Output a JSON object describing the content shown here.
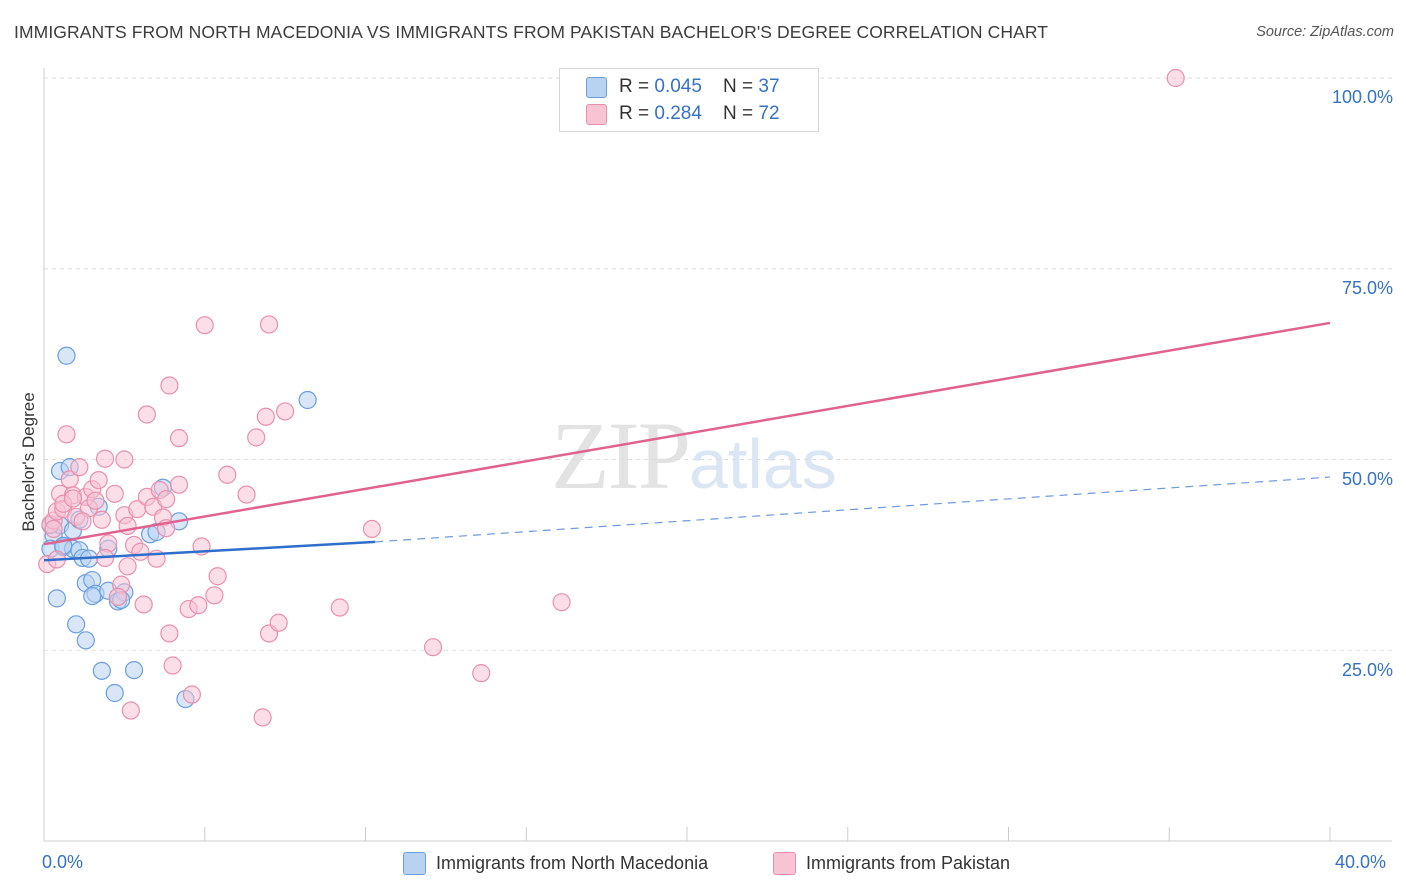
{
  "header": {
    "title": "IMMIGRANTS FROM NORTH MACEDONIA VS IMMIGRANTS FROM PAKISTAN BACHELOR'S DEGREE CORRELATION CHART",
    "source": "Source: ZipAtlas.com"
  },
  "watermark": {
    "zip": "ZIP",
    "atlas": "atlas"
  },
  "legend_top": {
    "rows": [
      {
        "r_label": "R = ",
        "r_value": "0.045",
        "n_label": "N = ",
        "n_value": "37"
      },
      {
        "r_label": "R = ",
        "r_value": "0.284",
        "n_label": "N = ",
        "n_value": "72"
      }
    ]
  },
  "colors": {
    "blue_fill": "#b8d2f2",
    "blue_stroke": "#6b9fdc",
    "blue_line": "#2f6fcb",
    "pink_fill": "#f8c3d3",
    "pink_stroke": "#ea8fae",
    "pink_line": "#e0628e",
    "accent_text": "#3572c4",
    "grid": "#dedede"
  },
  "chart_data": {
    "type": "scatter",
    "title": "IMMIGRANTS FROM NORTH MACEDONIA VS IMMIGRANTS FROM PAKISTAN BACHELOR'S DEGREE CORRELATION CHART",
    "xlabel": "",
    "ylabel": "Bachelor's Degree",
    "xlim": [
      0,
      40
    ],
    "ylim": [
      0,
      104
    ],
    "x_tick_labels": [
      "0.0%",
      "40.0%"
    ],
    "y_ticks": [
      25,
      50,
      75,
      100
    ],
    "y_tick_labels": [
      "25.0%",
      "50.0%",
      "75.0%",
      "100.0%"
    ],
    "legend": [
      "Immigrants from North Macedonia",
      "Immigrants from Pakistan"
    ],
    "series": [
      {
        "name": "Immigrants from North Macedonia",
        "R": 0.045,
        "N": 37,
        "trend": {
          "x0": 0,
          "y0": 36.8,
          "x1": 10.3,
          "y1": 39.2,
          "dash_to_x": 40,
          "dash_to_y": 47.7
        },
        "points": [
          [
            0.3,
            40.0
          ],
          [
            0.2,
            38.3
          ],
          [
            0.5,
            41.4
          ],
          [
            0.4,
            31.8
          ],
          [
            0.7,
            63.6
          ],
          [
            0.5,
            48.5
          ],
          [
            0.8,
            49.0
          ],
          [
            0.6,
            38.5
          ],
          [
            0.9,
            40.7
          ],
          [
            0.9,
            38.3
          ],
          [
            1.0,
            28.4
          ],
          [
            1.1,
            38.1
          ],
          [
            1.2,
            37.1
          ],
          [
            1.1,
            42.1
          ],
          [
            1.3,
            33.8
          ],
          [
            1.4,
            37.0
          ],
          [
            1.3,
            26.3
          ],
          [
            1.5,
            34.2
          ],
          [
            1.6,
            32.4
          ],
          [
            1.5,
            32.1
          ],
          [
            1.8,
            22.3
          ],
          [
            2.0,
            32.8
          ],
          [
            2.0,
            38.3
          ],
          [
            2.2,
            19.4
          ],
          [
            2.3,
            31.4
          ],
          [
            2.5,
            32.6
          ],
          [
            2.8,
            22.4
          ],
          [
            3.3,
            40.2
          ],
          [
            3.5,
            40.5
          ],
          [
            3.7,
            46.3
          ],
          [
            4.2,
            41.9
          ],
          [
            4.4,
            18.6
          ],
          [
            8.2,
            57.8
          ],
          [
            0.2,
            41.4
          ],
          [
            0.6,
            38.7
          ],
          [
            1.7,
            43.8
          ],
          [
            2.4,
            31.6
          ]
        ]
      },
      {
        "name": "Immigrants from Pakistan",
        "R": 0.284,
        "N": 72,
        "trend": {
          "x0": 0,
          "y0": 38.9,
          "x1": 40,
          "y1": 67.9
        },
        "points": [
          [
            0.1,
            36.3
          ],
          [
            0.2,
            41.5
          ],
          [
            0.3,
            42.0
          ],
          [
            0.4,
            43.2
          ],
          [
            0.5,
            45.5
          ],
          [
            0.6,
            43.5
          ],
          [
            0.7,
            53.3
          ],
          [
            0.8,
            47.4
          ],
          [
            0.9,
            45.3
          ],
          [
            1.0,
            42.5
          ],
          [
            1.1,
            49.0
          ],
          [
            1.3,
            45.1
          ],
          [
            1.4,
            43.6
          ],
          [
            1.5,
            46.1
          ],
          [
            1.6,
            44.6
          ],
          [
            1.7,
            47.3
          ],
          [
            1.8,
            42.1
          ],
          [
            1.9,
            50.1
          ],
          [
            2.0,
            39.0
          ],
          [
            2.2,
            45.5
          ],
          [
            2.4,
            33.6
          ],
          [
            2.5,
            42.7
          ],
          [
            2.5,
            50.0
          ],
          [
            2.6,
            41.3
          ],
          [
            2.6,
            36.0
          ],
          [
            2.8,
            38.8
          ],
          [
            2.9,
            43.5
          ],
          [
            3.0,
            37.9
          ],
          [
            3.1,
            31.0
          ],
          [
            3.2,
            45.1
          ],
          [
            3.2,
            55.9
          ],
          [
            3.4,
            43.8
          ],
          [
            3.5,
            37.0
          ],
          [
            3.6,
            46.0
          ],
          [
            3.7,
            42.4
          ],
          [
            3.8,
            44.8
          ],
          [
            3.9,
            27.2
          ],
          [
            3.8,
            41.0
          ],
          [
            3.9,
            59.7
          ],
          [
            4.0,
            23.0
          ],
          [
            4.2,
            52.8
          ],
          [
            4.2,
            46.7
          ],
          [
            4.5,
            30.4
          ],
          [
            4.6,
            19.2
          ],
          [
            4.8,
            30.9
          ],
          [
            4.9,
            38.6
          ],
          [
            5.0,
            67.6
          ],
          [
            5.3,
            32.2
          ],
          [
            5.4,
            34.7
          ],
          [
            5.7,
            48.0
          ],
          [
            6.3,
            45.4
          ],
          [
            6.6,
            52.9
          ],
          [
            6.8,
            16.2
          ],
          [
            6.9,
            55.6
          ],
          [
            7.0,
            27.2
          ],
          [
            7.0,
            67.7
          ],
          [
            7.3,
            28.6
          ],
          [
            7.5,
            56.3
          ],
          [
            9.2,
            30.6
          ],
          [
            10.2,
            40.9
          ],
          [
            12.1,
            25.4
          ],
          [
            13.6,
            22.0
          ],
          [
            16.1,
            31.3
          ],
          [
            35.2,
            100.0
          ],
          [
            0.3,
            40.9
          ],
          [
            0.6,
            44.2
          ],
          [
            1.2,
            41.9
          ],
          [
            2.3,
            32.0
          ],
          [
            0.9,
            44.9
          ],
          [
            1.9,
            37.1
          ],
          [
            2.7,
            17.1
          ],
          [
            0.4,
            36.9
          ]
        ]
      }
    ]
  },
  "legend_bottom": {
    "items": [
      {
        "label": "Immigrants from North Macedonia"
      },
      {
        "label": "Immigrants from Pakistan"
      }
    ]
  }
}
